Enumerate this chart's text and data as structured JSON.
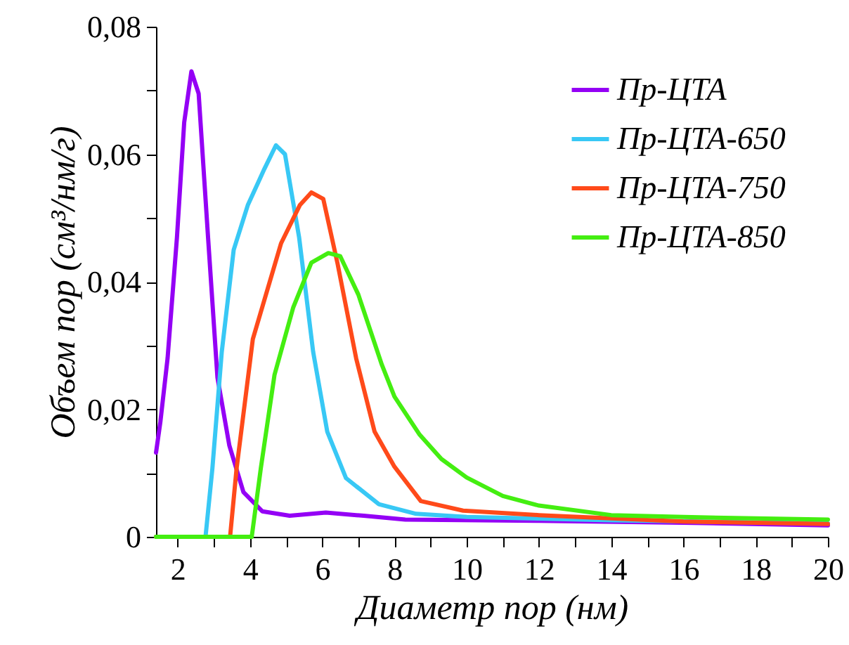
{
  "chart_data": {
    "type": "line",
    "xlabel": "Диаметр пор (нм)",
    "ylabel": "Объем пор (см³/нм/г)",
    "xlim": [
      1.4,
      20
    ],
    "ylim": [
      0,
      0.08
    ],
    "xticks": [
      2,
      {
        "value": 3,
        "label": null
      },
      4,
      {
        "value": 5,
        "label": null
      },
      6,
      {
        "value": 7,
        "label": null
      },
      8,
      {
        "value": 9,
        "label": null
      },
      10,
      {
        "value": 11,
        "label": null
      },
      12,
      {
        "value": 13,
        "label": null
      },
      14,
      {
        "value": 15,
        "label": null
      },
      16,
      {
        "value": 17,
        "label": null
      },
      18,
      {
        "value": 19,
        "label": null
      },
      20
    ],
    "yticks": [
      {
        "value": 0,
        "label": "0"
      },
      {
        "value": 0.01,
        "label": null
      },
      {
        "value": 0.02,
        "label": "0,02"
      },
      {
        "value": 0.03,
        "label": null
      },
      {
        "value": 0.04,
        "label": "0,04"
      },
      {
        "value": 0.05,
        "label": null
      },
      {
        "value": 0.06,
        "label": "0,06"
      },
      {
        "value": 0.07,
        "label": null
      },
      {
        "value": 0.08,
        "label": "0,08"
      }
    ],
    "grid": false,
    "legend": "top right",
    "series": [
      {
        "name": "Пр-ЦТА",
        "color": "#9400f5",
        "x": [
          1.4,
          1.52,
          1.72,
          1.98,
          2.18,
          2.38,
          2.58,
          2.84,
          3.1,
          3.43,
          3.82,
          4.34,
          5.1,
          6.1,
          7.15,
          8.3,
          12,
          16,
          20
        ],
        "values": [
          0.0132,
          0.018,
          0.028,
          0.047,
          0.065,
          0.073,
          0.0695,
          0.047,
          0.025,
          0.0143,
          0.007,
          0.004,
          0.0033,
          0.0038,
          0.0033,
          0.0027,
          0.0025,
          0.0022,
          0.0018
        ]
      },
      {
        "name": "Пр-ЦТА-650",
        "color": "#38c8f5",
        "x": [
          1.4,
          2.77,
          2.96,
          3.22,
          3.55,
          3.94,
          4.4,
          4.72,
          4.97,
          5.36,
          5.75,
          6.14,
          6.66,
          7.57,
          8.6,
          10,
          14,
          20
        ],
        "values": [
          0,
          0,
          0.0107,
          0.029,
          0.045,
          0.052,
          0.0577,
          0.0614,
          0.06,
          0.047,
          0.029,
          0.0165,
          0.0092,
          0.0051,
          0.0036,
          0.0031,
          0.0026,
          0.0021
        ]
      },
      {
        "name": "Пр-ЦТА-750",
        "color": "#ff4a1a",
        "x": [
          1.4,
          3.45,
          3.63,
          4.08,
          4.86,
          5.38,
          5.7,
          6.03,
          6.42,
          6.94,
          7.45,
          8.0,
          8.73,
          9.9,
          12,
          16,
          20
        ],
        "values": [
          0,
          0,
          0.0107,
          0.031,
          0.046,
          0.052,
          0.054,
          0.053,
          0.043,
          0.028,
          0.0165,
          0.011,
          0.0056,
          0.0041,
          0.0034,
          0.0024,
          0.002
        ]
      },
      {
        "name": "Пр-ЦТА-850",
        "color": "#44ee11",
        "x": [
          1.4,
          4.05,
          4.3,
          4.68,
          5.2,
          5.7,
          6.17,
          6.5,
          7.0,
          7.65,
          8.0,
          8.7,
          9.3,
          10,
          11,
          12,
          14,
          16,
          20
        ],
        "values": [
          0,
          0,
          0.0107,
          0.0254,
          0.036,
          0.043,
          0.0445,
          0.044,
          0.038,
          0.027,
          0.022,
          0.016,
          0.0122,
          0.0093,
          0.0064,
          0.0049,
          0.0034,
          0.0031,
          0.0027
        ]
      }
    ]
  }
}
